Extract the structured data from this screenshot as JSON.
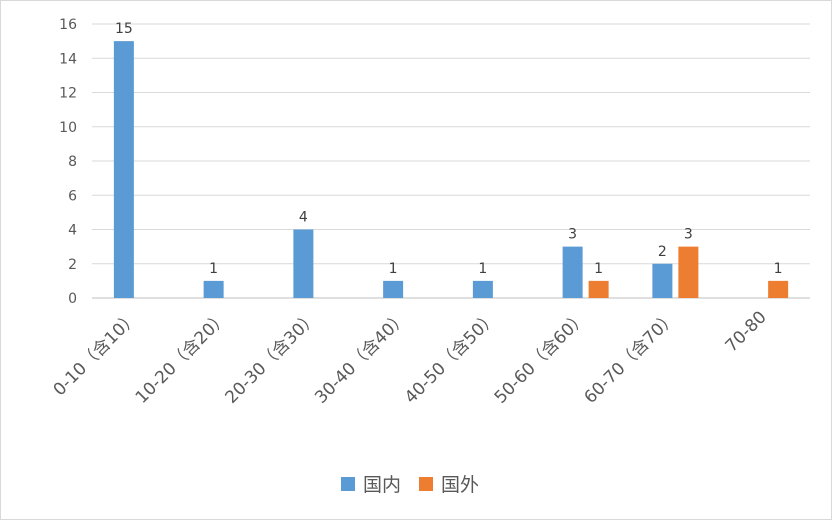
{
  "chart_data": {
    "type": "bar",
    "title": "",
    "xlabel": "",
    "ylabel": "",
    "categories": [
      "0-10（含10）",
      "10-20（含20）",
      "20-30（含30）",
      "30-40（含40）",
      "40-50（含50）",
      "50-60（含60）",
      "60-70（含70）",
      "70-80"
    ],
    "series": [
      {
        "name": "国内",
        "color": "#5b9bd5",
        "values": [
          15,
          1,
          4,
          1,
          1,
          3,
          2,
          null
        ]
      },
      {
        "name": "国外",
        "color": "#ed7d31",
        "values": [
          null,
          null,
          null,
          null,
          null,
          1,
          3,
          1
        ]
      }
    ],
    "ylim": [
      0,
      16
    ],
    "yticks": [
      0,
      2,
      4,
      6,
      8,
      10,
      12,
      14,
      16
    ],
    "grid": true,
    "legend_position": "bottom",
    "data_labels": true
  }
}
